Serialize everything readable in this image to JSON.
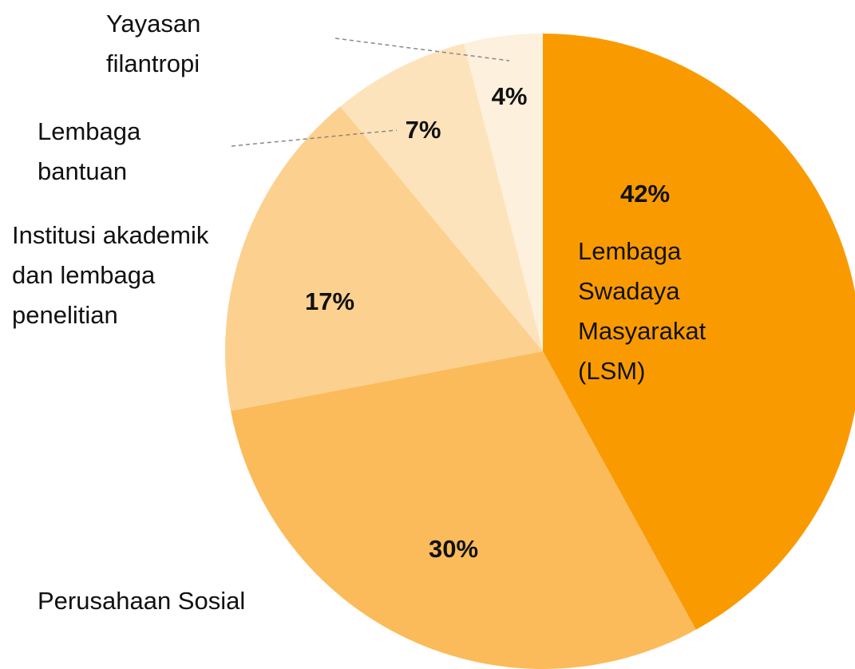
{
  "chart_data": {
    "type": "pie",
    "categories": [
      "Lembaga Swadaya Masyarakat (LSM)",
      "Perusahaan Sosial",
      "Institusi akademik dan lembaga penelitian",
      "Lembaga bantuan",
      "Yayasan filantropi"
    ],
    "values": [
      42,
      30,
      17,
      7,
      4
    ],
    "value_labels": [
      "42%",
      "30%",
      "17%",
      "7%",
      "4%"
    ],
    "colors": [
      "#f99b00",
      "#fbbb5a",
      "#fcd08e",
      "#fde3bb",
      "#fdf0dc"
    ]
  }
}
